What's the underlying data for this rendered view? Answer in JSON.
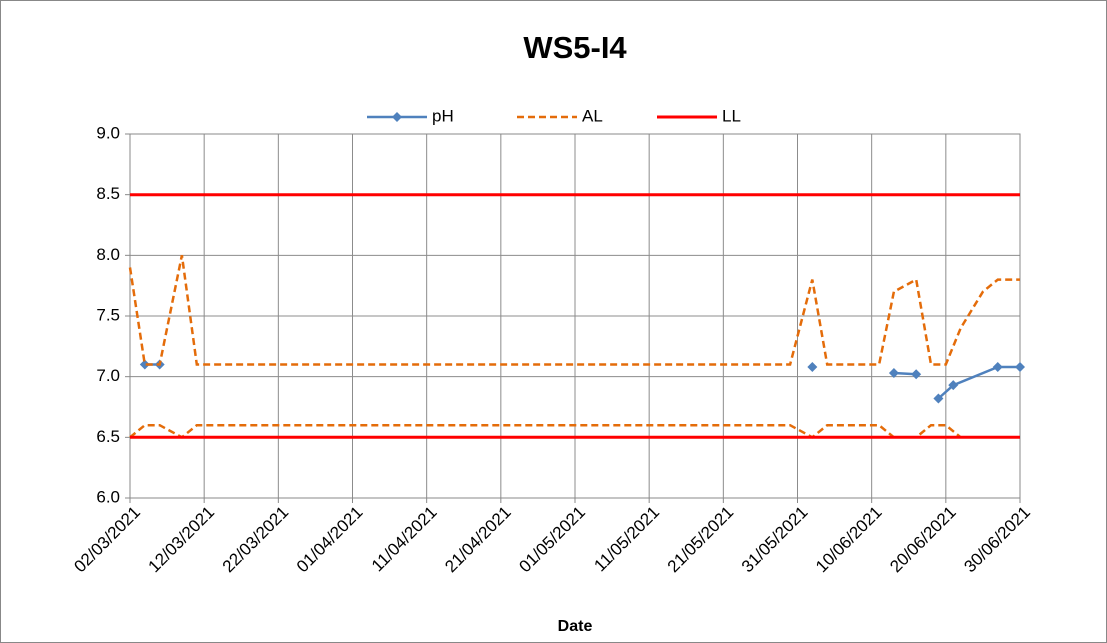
{
  "chart_data": {
    "type": "line",
    "title": "WS5-I4",
    "x_label": "Date",
    "xlim": [
      "02/03/2021",
      "30/06/2021"
    ],
    "xticks": [
      "02/03/2021",
      "12/03/2021",
      "22/03/2021",
      "01/04/2021",
      "11/04/2021",
      "21/04/2021",
      "01/05/2021",
      "11/05/2021",
      "21/05/2021",
      "31/05/2021",
      "10/06/2021",
      "20/06/2021",
      "30/06/2021"
    ],
    "ylim": [
      6.0,
      9.0
    ],
    "yticks": [
      {
        "value": 6.0,
        "label": "6.0"
      },
      6.5,
      {
        "value": 7.0,
        "label": "7.0"
      },
      7.5,
      {
        "value": 8.0,
        "label": "8.0"
      },
      8.5,
      {
        "value": 9.0,
        "label": "9.0"
      }
    ],
    "grid": true,
    "legend": "top",
    "series": [
      {
        "name": "pH",
        "color": "#4f81bd",
        "style": "solid",
        "marker": "diamond",
        "x": [
          "04/03/2021",
          "06/03/2021",
          null,
          "02/06/2021",
          null,
          "13/06/2021",
          "16/06/2021",
          null,
          "19/06/2021",
          "21/06/2021",
          "27/06/2021",
          "30/06/2021"
        ],
        "values": [
          7.1,
          7.1,
          null,
          7.08,
          null,
          7.03,
          7.02,
          null,
          6.82,
          6.93,
          7.08,
          7.08
        ]
      },
      {
        "name": "AL",
        "color": "#e46c0a",
        "style": "dashed",
        "x": [
          "02/03/2021",
          "04/03/2021",
          "06/03/2021",
          "09/03/2021",
          "11/03/2021",
          "30/05/2021",
          "02/06/2021",
          "04/06/2021",
          "11/06/2021",
          "13/06/2021",
          "16/06/2021",
          "18/06/2021",
          "20/06/2021",
          "22/06/2021",
          "25/06/2021",
          "27/06/2021",
          "30/06/2021",
          null,
          "02/03/2021",
          "04/03/2021",
          "06/03/2021",
          "09/03/2021",
          "11/03/2021",
          "30/05/2021",
          "02/06/2021",
          "04/06/2021",
          "11/06/2021",
          "13/06/2021",
          "16/06/2021",
          "18/06/2021",
          "20/06/2021",
          "22/06/2021",
          "25/06/2021",
          "27/06/2021",
          "30/06/2021"
        ],
        "values": [
          7.9,
          7.1,
          7.1,
          8.0,
          7.1,
          7.1,
          7.8,
          7.1,
          7.1,
          7.7,
          7.8,
          7.1,
          7.1,
          7.4,
          7.7,
          7.8,
          7.8,
          null,
          6.5,
          6.6,
          6.6,
          6.5,
          6.6,
          6.6,
          6.5,
          6.6,
          6.6,
          6.5,
          6.5,
          6.6,
          6.6,
          6.5,
          6.5,
          6.5,
          6.5
        ]
      },
      {
        "name": "LL",
        "color": "#ff0000",
        "style": "solid",
        "x": [
          "02/03/2021",
          "30/06/2021",
          null,
          "02/03/2021",
          "30/06/2021"
        ],
        "values": [
          8.5,
          8.5,
          null,
          6.5,
          6.5
        ]
      }
    ]
  }
}
